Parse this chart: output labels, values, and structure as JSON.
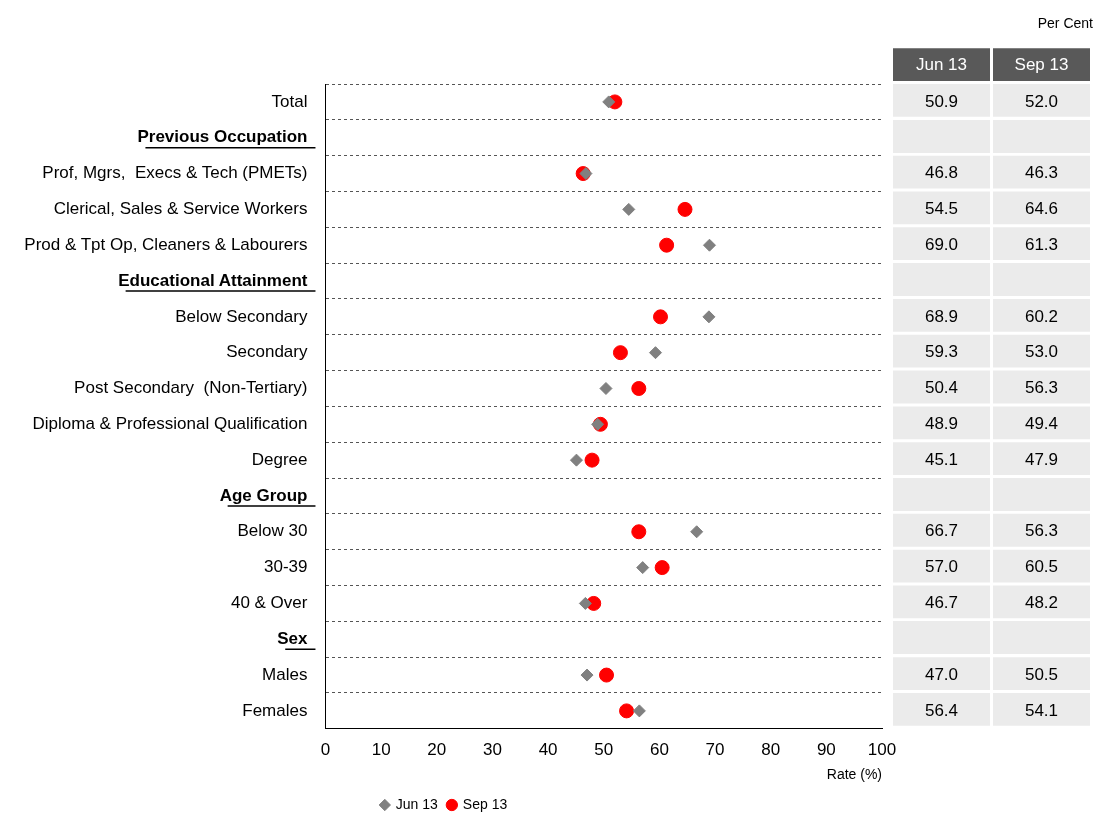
{
  "chart_data": {
    "type": "scatter",
    "orientation": "horizontal",
    "xlabel": "Rate (%)",
    "annotations": [
      "Per Cent"
    ],
    "categories": [
      "Total",
      "Previous Occupation",
      "Prof, Mgrs,  Execs & Tech (PMETs)",
      "Clerical, Sales & Service Workers",
      "Prod & Tpt Op, Cleaners & Labourers",
      "Educational Attainment",
      "Below Secondary",
      "Secondary",
      "Post Secondary  (Non-Tertiary)",
      "Diploma & Professional Qualification",
      "Degree",
      "Age Group",
      "Below 30",
      "30-39",
      "40 & Over",
      "Sex",
      "Males",
      "Females"
    ],
    "series": [
      {
        "name": "Jun 13",
        "color": "#808080",
        "marker": "diamond",
        "values": [
          50.9,
          null,
          46.8,
          54.5,
          69.0,
          null,
          68.9,
          59.3,
          50.4,
          48.9,
          45.1,
          null,
          66.7,
          57.0,
          46.7,
          null,
          47.0,
          56.4
        ],
        "value_labels": [
          "50.9",
          null,
          "46.8",
          "54.5",
          "69.0",
          null,
          "68.9",
          "59.3",
          "50.4",
          "48.9",
          "45.1",
          null,
          "66.7",
          "57.0",
          "46.7",
          null,
          "47.0",
          "56.4"
        ]
      },
      {
        "name": "Sep 13",
        "color": "#ff0000",
        "marker": "circle",
        "values": [
          52.0,
          null,
          46.3,
          64.6,
          61.3,
          null,
          60.2,
          53.0,
          56.3,
          49.4,
          47.9,
          null,
          56.3,
          60.5,
          48.2,
          null,
          50.5,
          54.1
        ],
        "value_labels": [
          "52.0",
          null,
          "46.3",
          "64.6",
          "61.3",
          null,
          "60.2",
          "53.0",
          "56.3",
          "49.4",
          "47.9",
          null,
          "56.3",
          "60.5",
          "48.2",
          null,
          "50.5",
          "54.1"
        ]
      }
    ],
    "xlim": [
      0,
      100
    ],
    "xticks": [
      0,
      10,
      20,
      30,
      40,
      50,
      60,
      70,
      80,
      90,
      100
    ],
    "grid": "y",
    "legend": "bottom"
  }
}
